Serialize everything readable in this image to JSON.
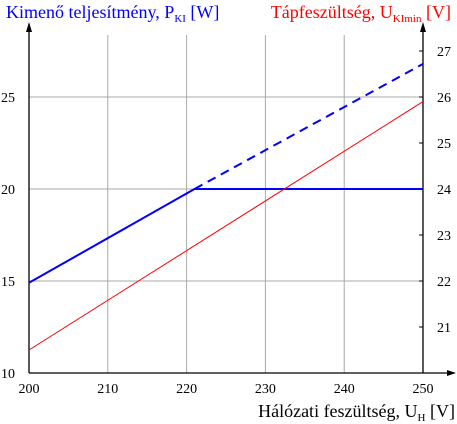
{
  "chart_data": {
    "type": "line",
    "title_left": {
      "text": "Kimenő teljesítmény, P",
      "sub": "KI",
      "unit": " [W]",
      "color": "#0000ff"
    },
    "title_right": {
      "text": "Tápfeszültség, U",
      "sub": "KImin",
      "unit": " [V]",
      "color": "#ff0000"
    },
    "xlabel": {
      "text": "Hálózati feszültség, U",
      "sub": "H",
      "unit": " [V]"
    },
    "xlim": [
      200,
      250
    ],
    "ylim_left": [
      10,
      27.5
    ],
    "ylim_right": [
      20,
      27.5
    ],
    "x_ticks": [
      200,
      210,
      220,
      230,
      240,
      250
    ],
    "y_ticks_left": [
      10,
      15,
      20,
      25
    ],
    "y_ticks_right": [
      21,
      22,
      23,
      24,
      25,
      26,
      27
    ],
    "grid": true,
    "series": [
      {
        "axis": "left",
        "color": "#0000ff",
        "style": "solid",
        "x": [
          200,
          221,
          250
        ],
        "y": [
          14.9,
          20,
          20
        ]
      },
      {
        "axis": "left",
        "color": "#0000ff",
        "style": "dashed",
        "x": [
          221,
          250
        ],
        "y": [
          20,
          26.8
        ]
      },
      {
        "axis": "right",
        "color": "#ff0000",
        "style": "solid",
        "x": [
          200,
          250
        ],
        "y": [
          20.5,
          25.9
        ]
      }
    ]
  }
}
